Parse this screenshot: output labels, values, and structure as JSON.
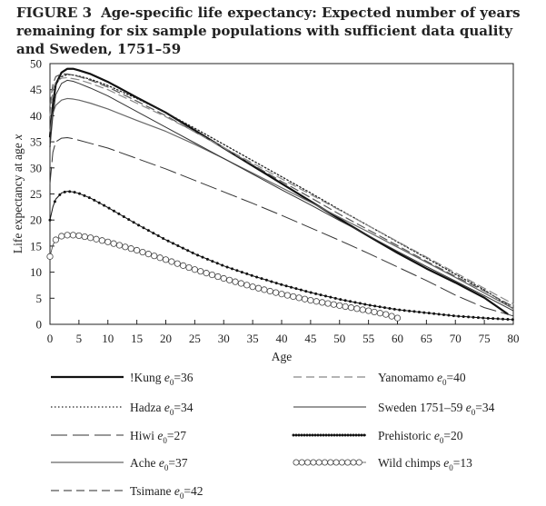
{
  "figure": {
    "number": "FIGURE 3",
    "title": "Age-specific life expectancy: Expected number of years remaining for six sample populations with sufficient data quality and Sweden, 1751–59"
  },
  "chart_data": {
    "type": "line",
    "title": "Age-specific life expectancy: Expected number of years remaining for six sample populations with sufficient data quality and Sweden, 1751–59",
    "xlabel": "Age",
    "ylabel": "Life expectancy at age x",
    "xlim": [
      0,
      80
    ],
    "ylim": [
      0,
      50
    ],
    "xticks": [
      0,
      5,
      10,
      15,
      20,
      25,
      30,
      35,
      40,
      45,
      50,
      55,
      60,
      65,
      70,
      75,
      80
    ],
    "yticks": [
      0,
      5,
      10,
      15,
      20,
      25,
      30,
      35,
      40,
      45,
      50
    ],
    "grid": false,
    "legend_position": "below",
    "series": [
      {
        "id": "kung",
        "name": "!Kung",
        "e0": "36",
        "style": "thick-solid",
        "color": "#111111",
        "x": [
          0,
          0.5,
          1,
          2,
          3,
          4,
          5,
          7,
          10,
          15,
          20,
          25,
          30,
          35,
          40,
          45,
          50,
          55,
          60,
          65,
          70,
          75,
          79
        ],
        "y": [
          36,
          42,
          46,
          48.3,
          49,
          49,
          48.7,
          48,
          46.5,
          43.5,
          40.6,
          37.2,
          33.8,
          30.4,
          27,
          23.6,
          20.2,
          16.9,
          13.7,
          10.7,
          8,
          5.1,
          2
        ]
      },
      {
        "id": "hadza",
        "name": "Hadza",
        "e0": "34",
        "style": "dotted",
        "color": "#222222",
        "x": [
          0,
          0.5,
          1,
          2,
          3,
          4,
          5,
          7,
          10,
          15,
          20,
          25,
          30,
          35,
          40,
          45,
          50,
          55,
          60,
          65,
          70,
          75,
          80
        ],
        "y": [
          34,
          43,
          46,
          47.5,
          47.9,
          47.8,
          47.6,
          47,
          45.8,
          43.3,
          40.6,
          37.6,
          34.5,
          31.4,
          28.3,
          25.2,
          22,
          18.9,
          15.8,
          12.7,
          9.6,
          6.6,
          3
        ]
      },
      {
        "id": "hiwi",
        "name": "Hiwi",
        "e0": "27",
        "style": "long-dash",
        "color": "#333333",
        "x": [
          0,
          0.5,
          1,
          2,
          3,
          4,
          5,
          7,
          10,
          15,
          20,
          25,
          30,
          35,
          40,
          45,
          50,
          55,
          60,
          65,
          70,
          75,
          80
        ],
        "y": [
          27,
          33,
          35,
          35.7,
          35.8,
          35.6,
          35.3,
          34.7,
          33.8,
          31.8,
          29.8,
          27.6,
          25.4,
          23.2,
          20.9,
          18.5,
          16.1,
          13.6,
          11,
          8.4,
          5.6,
          3.2,
          1.6
        ]
      },
      {
        "id": "ache",
        "name": "Ache",
        "e0": "37",
        "style": "solid",
        "color": "#666666",
        "x": [
          0,
          0.5,
          1,
          2,
          3,
          4,
          5,
          7,
          10,
          15,
          20,
          25,
          30,
          35,
          40,
          45,
          50,
          55,
          60,
          65,
          70,
          75,
          80
        ],
        "y": [
          37,
          40.5,
          42,
          43,
          43.3,
          43.2,
          43,
          42.4,
          41.3,
          39.1,
          37,
          34.5,
          31.8,
          29,
          26.2,
          23.4,
          20.5,
          17.7,
          14.8,
          11.9,
          9,
          6,
          3
        ]
      },
      {
        "id": "tsimane",
        "name": "Tsimane",
        "e0": "42",
        "style": "dashed",
        "color": "#555555",
        "x": [
          0,
          0.5,
          1,
          2,
          3,
          4,
          5,
          7,
          10,
          15,
          20,
          25,
          30,
          35,
          40,
          45,
          50,
          55,
          60,
          65,
          70,
          75,
          80
        ],
        "y": [
          42,
          46,
          47.5,
          48,
          48,
          47.8,
          47.5,
          46.8,
          45.5,
          42.8,
          40,
          36.9,
          33.8,
          30.6,
          27.4,
          24.3,
          21.1,
          18.1,
          15.1,
          12.1,
          9.2,
          6.4,
          3.4
        ]
      },
      {
        "id": "yanomamo",
        "name": "Yanomamo",
        "e0": "40",
        "style": "dashed",
        "color": "#888888",
        "x": [
          0,
          0.5,
          1,
          2,
          3,
          4,
          5,
          7,
          10,
          15,
          20,
          25,
          30,
          35,
          40,
          45,
          50,
          55,
          60,
          65,
          70,
          75,
          80
        ],
        "y": [
          40,
          45,
          46.5,
          47.2,
          47.3,
          47.1,
          46.9,
          46.2,
          45,
          42.4,
          39.8,
          36.9,
          33.9,
          30.9,
          27.9,
          24.9,
          21.9,
          18.9,
          15.9,
          12.9,
          9.9,
          6.9,
          3.9
        ]
      },
      {
        "id": "sweden",
        "name": "Sweden 1751–59",
        "e0": "34",
        "style": "thin-solid",
        "color": "#333333",
        "x": [
          0,
          0.5,
          1,
          2,
          3,
          4,
          5,
          7,
          10,
          15,
          20,
          25,
          30,
          35,
          40,
          45,
          50,
          55,
          60,
          65,
          70,
          75,
          80
        ],
        "y": [
          34,
          40,
          44,
          46.2,
          46.8,
          46.6,
          46.2,
          45.3,
          43.8,
          40.8,
          37.8,
          34.8,
          31.8,
          28.8,
          25.8,
          22.9,
          19.9,
          17,
          14,
          11.1,
          8.3,
          5.5,
          2.6
        ]
      },
      {
        "id": "prehistoric",
        "name": "Prehistoric",
        "e0": "20",
        "style": "dotted-markers",
        "color": "#111111",
        "x": [
          0,
          0.5,
          1,
          2,
          3,
          4,
          5,
          7,
          10,
          15,
          20,
          25,
          30,
          35,
          40,
          45,
          50,
          55,
          60,
          65,
          70,
          75,
          80
        ],
        "y": [
          20,
          22.5,
          24,
          25.2,
          25.5,
          25.4,
          25.1,
          24.2,
          22.4,
          19.2,
          16.2,
          13.5,
          11.2,
          9.3,
          7.6,
          6.1,
          4.8,
          3.7,
          2.8,
          2.2,
          1.6,
          1.2,
          0.9
        ]
      },
      {
        "id": "chimps",
        "name": "Wild chimps",
        "e0": "13",
        "style": "open-circles",
        "color": "#444444",
        "x": [
          0,
          0.5,
          1,
          2,
          3,
          4,
          5,
          7,
          10,
          15,
          20,
          25,
          30,
          35,
          40,
          45,
          50,
          55,
          58,
          60
        ],
        "y": [
          13,
          15.2,
          16.2,
          16.9,
          17.1,
          17.1,
          17,
          16.6,
          15.8,
          14.2,
          12.4,
          10.5,
          8.8,
          7.2,
          5.8,
          4.6,
          3.6,
          2.6,
          1.9,
          1.2
        ]
      }
    ]
  }
}
